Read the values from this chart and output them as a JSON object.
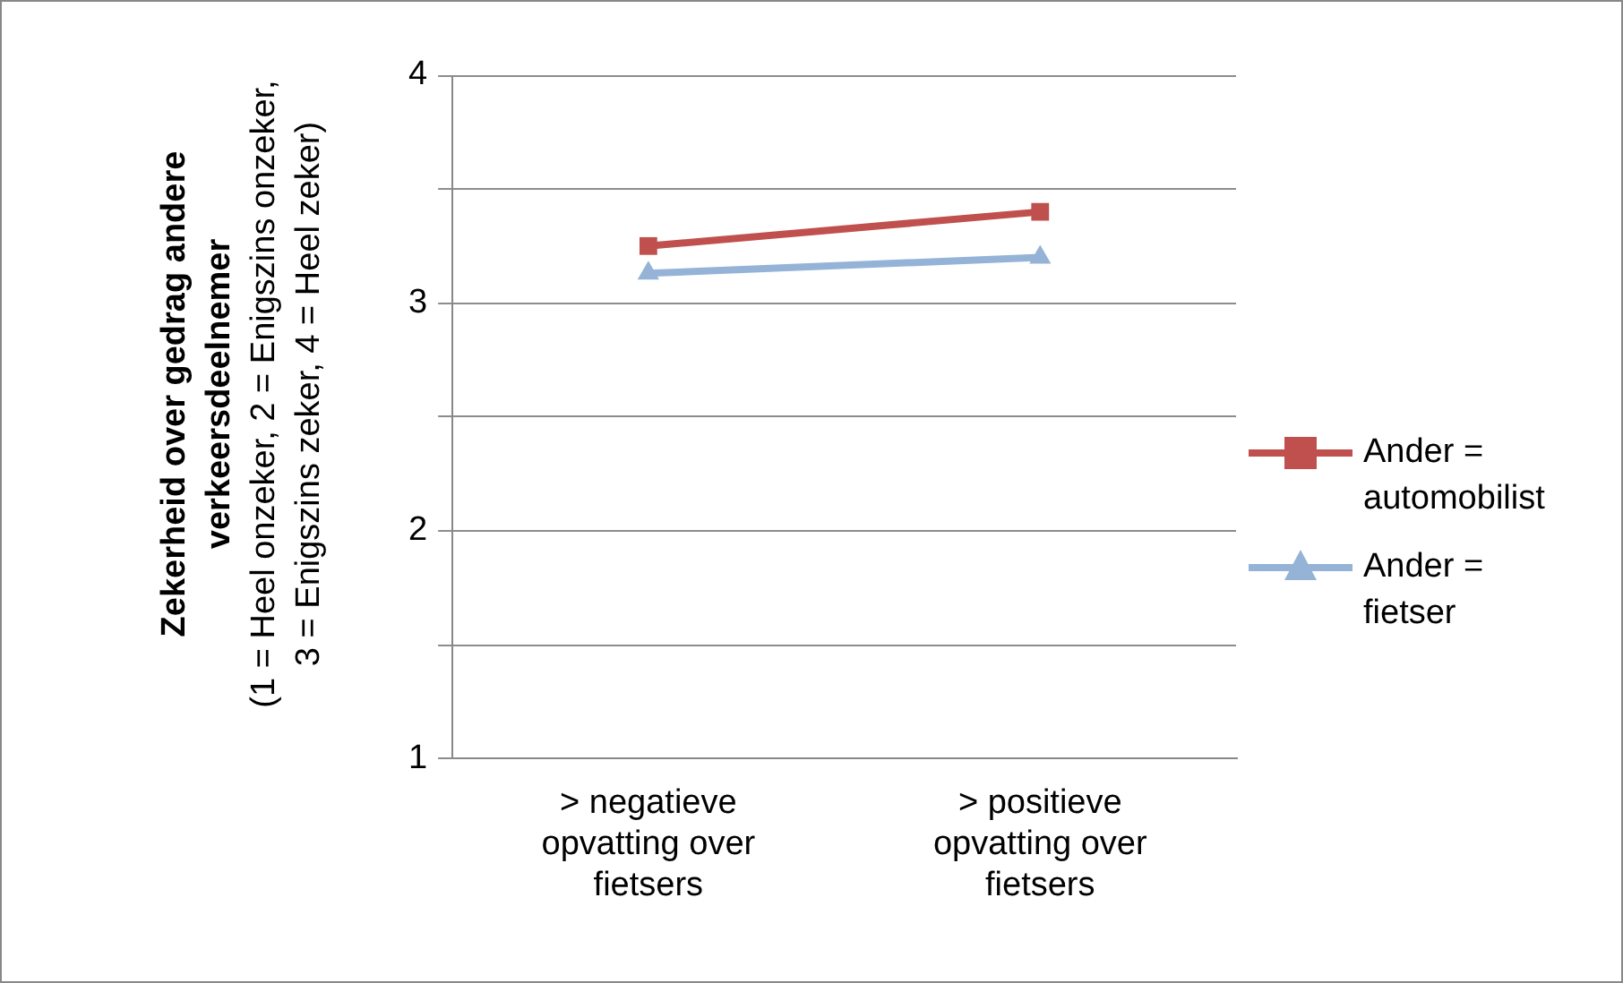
{
  "chart_data": {
    "type": "line",
    "ylabel": "Zekerheid over gedrag andere verkeersdeelnemer",
    "annotations": [
      "(1 = Heel onzeker, 2 = Enigszins onzeker, 3 = Enigszins zeker, 4 = Heel zeker)"
    ],
    "categories": [
      "> negatieve opvatting over fietsers",
      "> positieve opvatting over fietsers"
    ],
    "series": [
      {
        "name": "Ander = automobilist",
        "color": "#c0504d",
        "marker": "square",
        "values": [
          3.25,
          3.4
        ]
      },
      {
        "name": "Ander = fietser",
        "color": "#95b3d7",
        "marker": "triangle",
        "values": [
          3.13,
          3.2
        ]
      }
    ],
    "ylim": [
      1,
      4
    ],
    "yticks": [
      1,
      {
        "value": 1.5,
        "label": null
      },
      2,
      {
        "value": 2.5,
        "label": null
      },
      3,
      {
        "value": 3.5,
        "label": null
      },
      4
    ],
    "grid": "y",
    "legend": "right"
  }
}
